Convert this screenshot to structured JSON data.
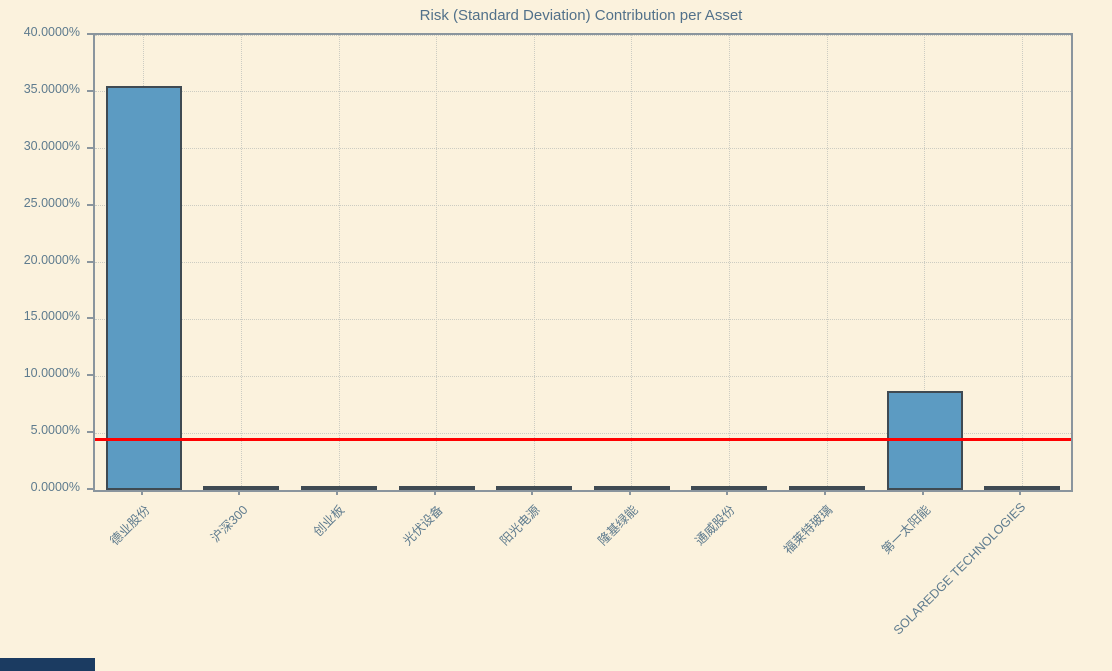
{
  "chart_data": {
    "type": "bar",
    "title": "Risk (Standard Deviation) Contribution per Asset",
    "categories": [
      "德业股份",
      "沪深300",
      "创业板",
      "光伏设备",
      "阳光电源",
      "隆基绿能",
      "通威股份",
      "福莱特玻璃",
      "第一太阳能",
      "SOLAREDGE TECHNOLOGIES"
    ],
    "values": [
      35.48,
      0.02,
      0.02,
      0.02,
      0.02,
      0.02,
      0.02,
      0.02,
      8.68,
      0.02
    ],
    "xlabel": "",
    "ylabel": "",
    "ylim": [
      0,
      40
    ],
    "ytick_step": 5,
    "yticks": [
      "0.0000%",
      "5.0000%",
      "10.0000%",
      "15.0000%",
      "20.0000%",
      "25.0000%",
      "30.0000%",
      "35.0000%",
      "40.0000%"
    ],
    "grid": "dotted, both axes",
    "legend": "none",
    "xtick_rotation_deg": 45,
    "reference_line": {
      "value": 4.45,
      "color": "#FF0000"
    },
    "colors": {
      "background": "#FBF2DD",
      "bar_fill": "#5C9BC2",
      "bar_edge": "#3F4A52",
      "axis_frame": "#8A959D",
      "gridline": "#CCCCC2",
      "text": "#5E7B8E",
      "title_text": "#52718A",
      "reference_line": "#FF0000"
    }
  },
  "corner_block": {
    "color": "#1B3B61"
  }
}
